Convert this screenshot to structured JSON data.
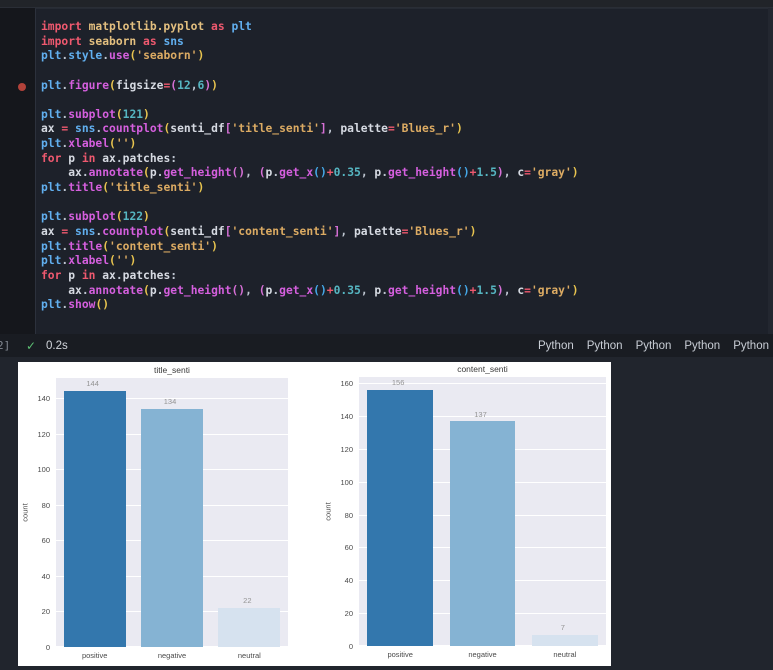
{
  "cell": {
    "execution_label": "2]",
    "check_icon": "✓",
    "duration": "0.2s",
    "kernel_labels": [
      "Python",
      "Python",
      "Python",
      "Python",
      "Python"
    ],
    "breakpoint_line": 5,
    "code_lines": [
      [
        {
          "c": "k",
          "t": "import "
        },
        {
          "c": "m",
          "t": "matplotlib.pyplot"
        },
        {
          "c": "k",
          "t": " as "
        },
        {
          "c": "v",
          "t": "plt"
        }
      ],
      [
        {
          "c": "k",
          "t": "import "
        },
        {
          "c": "m",
          "t": "seaborn"
        },
        {
          "c": "k",
          "t": " as "
        },
        {
          "c": "v",
          "t": "sns"
        }
      ],
      [
        {
          "c": "v",
          "t": "plt"
        },
        {
          "c": "p",
          "t": "."
        },
        {
          "c": "v",
          "t": "style"
        },
        {
          "c": "p",
          "t": "."
        },
        {
          "c": "f",
          "t": "use"
        },
        {
          "c": "b1",
          "t": "("
        },
        {
          "c": "s",
          "t": "'seaborn'"
        },
        {
          "c": "b1",
          "t": ")"
        }
      ],
      [],
      [
        {
          "c": "v",
          "t": "plt"
        },
        {
          "c": "p",
          "t": "."
        },
        {
          "c": "f",
          "t": "figure"
        },
        {
          "c": "b1",
          "t": "("
        },
        {
          "c": "w",
          "t": "figsize"
        },
        {
          "c": "k",
          "t": "="
        },
        {
          "c": "b2",
          "t": "("
        },
        {
          "c": "n",
          "t": "12"
        },
        {
          "c": "p",
          "t": ","
        },
        {
          "c": "n",
          "t": "6"
        },
        {
          "c": "b2",
          "t": ")"
        },
        {
          "c": "b1",
          "t": ")"
        }
      ],
      [],
      [
        {
          "c": "v",
          "t": "plt"
        },
        {
          "c": "p",
          "t": "."
        },
        {
          "c": "f",
          "t": "subplot"
        },
        {
          "c": "b1",
          "t": "("
        },
        {
          "c": "n",
          "t": "121"
        },
        {
          "c": "b1",
          "t": ")"
        }
      ],
      [
        {
          "c": "w",
          "t": "ax "
        },
        {
          "c": "k",
          "t": "= "
        },
        {
          "c": "v",
          "t": "sns"
        },
        {
          "c": "p",
          "t": "."
        },
        {
          "c": "f",
          "t": "countplot"
        },
        {
          "c": "b1",
          "t": "("
        },
        {
          "c": "w",
          "t": "senti_df"
        },
        {
          "c": "b2",
          "t": "["
        },
        {
          "c": "s",
          "t": "'title_senti'"
        },
        {
          "c": "b2",
          "t": "]"
        },
        {
          "c": "p",
          "t": ", "
        },
        {
          "c": "w",
          "t": "palette"
        },
        {
          "c": "k",
          "t": "="
        },
        {
          "c": "s",
          "t": "'Blues_r'"
        },
        {
          "c": "b1",
          "t": ")"
        }
      ],
      [
        {
          "c": "v",
          "t": "plt"
        },
        {
          "c": "p",
          "t": "."
        },
        {
          "c": "f",
          "t": "xlabel"
        },
        {
          "c": "b1",
          "t": "("
        },
        {
          "c": "s",
          "t": "''"
        },
        {
          "c": "b1",
          "t": ")"
        }
      ],
      [
        {
          "c": "k",
          "t": "for "
        },
        {
          "c": "w",
          "t": "p "
        },
        {
          "c": "k",
          "t": "in "
        },
        {
          "c": "w",
          "t": "ax"
        },
        {
          "c": "p",
          "t": "."
        },
        {
          "c": "w",
          "t": "patches"
        },
        {
          "c": "p",
          "t": ":"
        }
      ],
      [
        {
          "c": "w",
          "t": "    ax"
        },
        {
          "c": "p",
          "t": "."
        },
        {
          "c": "f",
          "t": "annotate"
        },
        {
          "c": "b1",
          "t": "("
        },
        {
          "c": "w",
          "t": "p"
        },
        {
          "c": "p",
          "t": "."
        },
        {
          "c": "f",
          "t": "get_height"
        },
        {
          "c": "b2",
          "t": "()"
        },
        {
          "c": "p",
          "t": ", "
        },
        {
          "c": "b2",
          "t": "("
        },
        {
          "c": "w",
          "t": "p"
        },
        {
          "c": "p",
          "t": "."
        },
        {
          "c": "f",
          "t": "get_x"
        },
        {
          "c": "b3",
          "t": "()"
        },
        {
          "c": "k",
          "t": "+"
        },
        {
          "c": "n",
          "t": "0.35"
        },
        {
          "c": "p",
          "t": ", "
        },
        {
          "c": "w",
          "t": "p"
        },
        {
          "c": "p",
          "t": "."
        },
        {
          "c": "f",
          "t": "get_height"
        },
        {
          "c": "b3",
          "t": "()"
        },
        {
          "c": "k",
          "t": "+"
        },
        {
          "c": "n",
          "t": "1.5"
        },
        {
          "c": "b2",
          "t": ")"
        },
        {
          "c": "p",
          "t": ", "
        },
        {
          "c": "w",
          "t": "c"
        },
        {
          "c": "k",
          "t": "="
        },
        {
          "c": "s",
          "t": "'gray'"
        },
        {
          "c": "b1",
          "t": ")"
        }
      ],
      [
        {
          "c": "v",
          "t": "plt"
        },
        {
          "c": "p",
          "t": "."
        },
        {
          "c": "f",
          "t": "title"
        },
        {
          "c": "b1",
          "t": "("
        },
        {
          "c": "s",
          "t": "'title_senti'"
        },
        {
          "c": "b1",
          "t": ")"
        }
      ],
      [],
      [
        {
          "c": "v",
          "t": "plt"
        },
        {
          "c": "p",
          "t": "."
        },
        {
          "c": "f",
          "t": "subplot"
        },
        {
          "c": "b1",
          "t": "("
        },
        {
          "c": "n",
          "t": "122"
        },
        {
          "c": "b1",
          "t": ")"
        }
      ],
      [
        {
          "c": "w",
          "t": "ax "
        },
        {
          "c": "k",
          "t": "= "
        },
        {
          "c": "v",
          "t": "sns"
        },
        {
          "c": "p",
          "t": "."
        },
        {
          "c": "f",
          "t": "countplot"
        },
        {
          "c": "b1",
          "t": "("
        },
        {
          "c": "w",
          "t": "senti_df"
        },
        {
          "c": "b2",
          "t": "["
        },
        {
          "c": "s",
          "t": "'content_senti'"
        },
        {
          "c": "b2",
          "t": "]"
        },
        {
          "c": "p",
          "t": ", "
        },
        {
          "c": "w",
          "t": "palette"
        },
        {
          "c": "k",
          "t": "="
        },
        {
          "c": "s",
          "t": "'Blues_r'"
        },
        {
          "c": "b1",
          "t": ")"
        }
      ],
      [
        {
          "c": "v",
          "t": "plt"
        },
        {
          "c": "p",
          "t": "."
        },
        {
          "c": "f",
          "t": "title"
        },
        {
          "c": "b1",
          "t": "("
        },
        {
          "c": "s",
          "t": "'content_senti'"
        },
        {
          "c": "b1",
          "t": ")"
        }
      ],
      [
        {
          "c": "v",
          "t": "plt"
        },
        {
          "c": "p",
          "t": "."
        },
        {
          "c": "f",
          "t": "xlabel"
        },
        {
          "c": "b1",
          "t": "("
        },
        {
          "c": "s",
          "t": "''"
        },
        {
          "c": "b1",
          "t": ")"
        }
      ],
      [
        {
          "c": "k",
          "t": "for "
        },
        {
          "c": "w",
          "t": "p "
        },
        {
          "c": "k",
          "t": "in "
        },
        {
          "c": "w",
          "t": "ax"
        },
        {
          "c": "p",
          "t": "."
        },
        {
          "c": "w",
          "t": "patches"
        },
        {
          "c": "p",
          "t": ":"
        }
      ],
      [
        {
          "c": "w",
          "t": "    ax"
        },
        {
          "c": "p",
          "t": "."
        },
        {
          "c": "f",
          "t": "annotate"
        },
        {
          "c": "b1",
          "t": "("
        },
        {
          "c": "w",
          "t": "p"
        },
        {
          "c": "p",
          "t": "."
        },
        {
          "c": "f",
          "t": "get_height"
        },
        {
          "c": "b2",
          "t": "()"
        },
        {
          "c": "p",
          "t": ", "
        },
        {
          "c": "b2",
          "t": "("
        },
        {
          "c": "w",
          "t": "p"
        },
        {
          "c": "p",
          "t": "."
        },
        {
          "c": "f",
          "t": "get_x"
        },
        {
          "c": "b3",
          "t": "()"
        },
        {
          "c": "k",
          "t": "+"
        },
        {
          "c": "n",
          "t": "0.35"
        },
        {
          "c": "p",
          "t": ", "
        },
        {
          "c": "w",
          "t": "p"
        },
        {
          "c": "p",
          "t": "."
        },
        {
          "c": "f",
          "t": "get_height"
        },
        {
          "c": "b3",
          "t": "()"
        },
        {
          "c": "k",
          "t": "+"
        },
        {
          "c": "n",
          "t": "1.5"
        },
        {
          "c": "b2",
          "t": ")"
        },
        {
          "c": "p",
          "t": ", "
        },
        {
          "c": "w",
          "t": "c"
        },
        {
          "c": "k",
          "t": "="
        },
        {
          "c": "s",
          "t": "'gray'"
        },
        {
          "c": "b1",
          "t": ")"
        }
      ],
      [
        {
          "c": "v",
          "t": "plt"
        },
        {
          "c": "p",
          "t": "."
        },
        {
          "c": "f",
          "t": "show"
        },
        {
          "c": "b1",
          "t": "()"
        }
      ]
    ]
  },
  "syntax_colors": {
    "k": "#ef596f",
    "m": "#e3bf7f",
    "v": "#61afef",
    "f": "#d55fde",
    "s": "#dcab63",
    "n": "#56b6c2",
    "w": "#d6dae2",
    "p": "#bfc6d1",
    "b1": "#e8c44f",
    "b2": "#d670d6",
    "b3": "#45a8e8"
  },
  "chart_data": [
    {
      "type": "bar",
      "title": "title_senti",
      "xlabel": "",
      "ylabel": "count",
      "categories": [
        "positive",
        "negative",
        "neutral"
      ],
      "values": [
        144,
        134,
        22
      ],
      "yticks": [
        0,
        20,
        40,
        60,
        80,
        100,
        120,
        140
      ],
      "ylim": [
        0,
        151.2
      ],
      "grid": true,
      "legend": false,
      "bar_colors": [
        "#3377ad",
        "#85b3d3",
        "#d6e2ef"
      ],
      "value_labels": [
        "144",
        "134",
        "22"
      ]
    },
    {
      "type": "bar",
      "title": "content_senti",
      "xlabel": "",
      "ylabel": "count",
      "categories": [
        "positive",
        "negative",
        "neutral"
      ],
      "values": [
        156,
        137,
        7
      ],
      "yticks": [
        0,
        20,
        40,
        60,
        80,
        100,
        120,
        140,
        160
      ],
      "ylim": [
        0,
        163.8
      ],
      "grid": true,
      "legend": false,
      "bar_colors": [
        "#3377ad",
        "#85b3d3",
        "#d6e2ef"
      ],
      "value_labels": [
        "156",
        "137",
        "7"
      ]
    }
  ],
  "figure_style": {
    "background": "#ffffff",
    "axes_background": "#eaeaf2",
    "grid_color": "#ffffff",
    "tick_color": "#4a4a4a",
    "title_color": "#3a3a3a",
    "annotation_color": "#949494"
  }
}
